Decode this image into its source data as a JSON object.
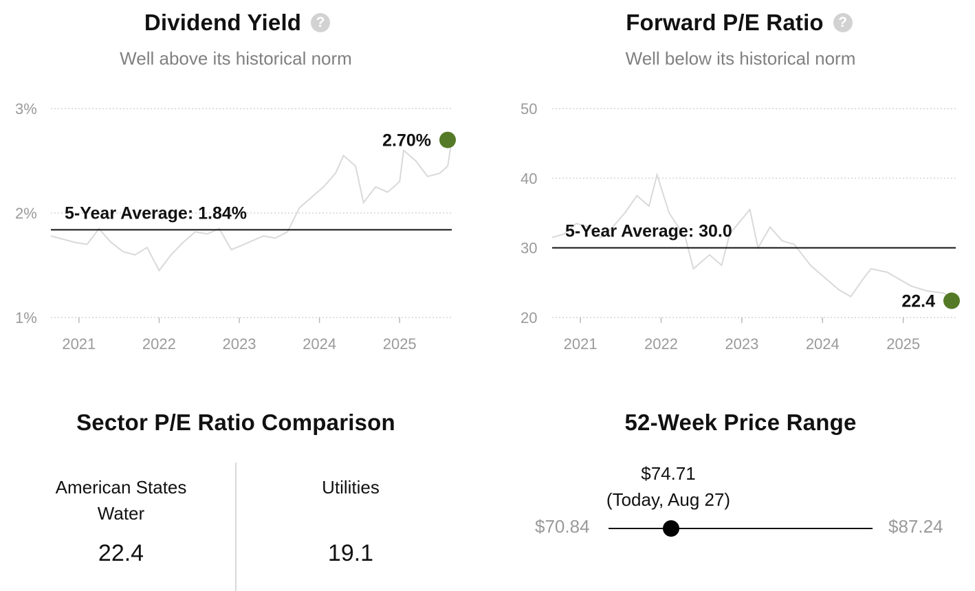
{
  "colors": {
    "current_dot": "#557a27",
    "history_line": "#d9d9d9",
    "average_line": "#111111",
    "grid": "#d4d4d4"
  },
  "dividend_yield": {
    "title": "Dividend Yield",
    "subtitle": "Well above its historical norm",
    "help_icon": "question-circle-icon"
  },
  "forward_pe": {
    "title": "Forward P/E Ratio",
    "subtitle": "Well below its historical norm",
    "help_icon": "question-circle-icon"
  },
  "chart_data": [
    {
      "type": "line",
      "id": "dividend-yield",
      "title": "Dividend Yield",
      "x_ticks": [
        "2021",
        "2022",
        "2023",
        "2024",
        "2025"
      ],
      "y_ticks": [
        "1%",
        "2%",
        "3%"
      ],
      "ylim": [
        1,
        3
      ],
      "xlim": [
        2020.65,
        2025.65
      ],
      "grid": true,
      "average": {
        "label": "5-Year Average: 1.84%",
        "value": 1.84
      },
      "current": {
        "label": "2.70%",
        "value": 2.7,
        "x": 2025.65
      },
      "series": [
        {
          "x": [
            2020.65,
            2020.8,
            2020.95,
            2021.1,
            2021.25,
            2021.4,
            2021.55,
            2021.7,
            2021.85,
            2022.0,
            2022.15,
            2022.3,
            2022.45,
            2022.6,
            2022.75,
            2022.9,
            2023.0,
            2023.15,
            2023.3,
            2023.45,
            2023.6,
            2023.75,
            2023.9,
            2024.05,
            2024.2,
            2024.3,
            2024.45,
            2024.55,
            2024.7,
            2024.85,
            2025.0,
            2025.05,
            2025.2,
            2025.35,
            2025.5,
            2025.6,
            2025.65
          ],
          "y": [
            1.78,
            1.75,
            1.72,
            1.7,
            1.85,
            1.72,
            1.63,
            1.6,
            1.67,
            1.45,
            1.6,
            1.72,
            1.82,
            1.8,
            1.85,
            1.65,
            1.68,
            1.73,
            1.78,
            1.76,
            1.82,
            2.05,
            2.15,
            2.25,
            2.38,
            2.55,
            2.45,
            2.1,
            2.25,
            2.2,
            2.3,
            2.6,
            2.5,
            2.35,
            2.38,
            2.45,
            2.7
          ]
        }
      ]
    },
    {
      "type": "line",
      "id": "forward-pe",
      "title": "Forward P/E Ratio",
      "x_ticks": [
        "2021",
        "2022",
        "2023",
        "2024",
        "2025"
      ],
      "y_ticks": [
        "20",
        "30",
        "40",
        "50"
      ],
      "ylim": [
        20,
        50
      ],
      "xlim": [
        2020.65,
        2025.65
      ],
      "grid": true,
      "average": {
        "label": "5-Year Average: 30.0",
        "value": 30.0
      },
      "current": {
        "label": "22.4",
        "value": 22.4,
        "x": 2025.65
      },
      "series": [
        {
          "x": [
            2020.65,
            2020.8,
            2020.95,
            2021.1,
            2021.25,
            2021.4,
            2021.55,
            2021.7,
            2021.85,
            2021.95,
            2022.1,
            2022.3,
            2022.4,
            2022.6,
            2022.75,
            2022.85,
            2023.1,
            2023.2,
            2023.35,
            2023.5,
            2023.65,
            2023.85,
            2024.0,
            2024.2,
            2024.35,
            2024.5,
            2024.6,
            2024.8,
            2024.95,
            2025.1,
            2025.3,
            2025.5,
            2025.65
          ],
          "y": [
            31.5,
            32.0,
            33.5,
            33.0,
            31.5,
            33.0,
            35.0,
            37.5,
            36.0,
            40.5,
            35.0,
            31.5,
            27.0,
            29.0,
            27.5,
            32.0,
            35.5,
            30.0,
            33.0,
            31.0,
            30.5,
            27.5,
            26.0,
            24.0,
            23.0,
            25.5,
            27.0,
            26.5,
            25.5,
            24.5,
            23.8,
            23.5,
            22.4
          ]
        }
      ]
    }
  ],
  "sector_comparison": {
    "title": "Sector P/E Ratio Comparison",
    "company": {
      "name": "American States Water",
      "value": "22.4"
    },
    "sector": {
      "name": "Utilities",
      "value": "19.1"
    }
  },
  "price_range": {
    "title": "52-Week Price Range",
    "low": "$70.84",
    "high": "$87.24",
    "current_price": "$74.71",
    "current_note": "(Today, Aug 27)",
    "low_value": 70.84,
    "high_value": 87.24,
    "current_value": 74.71
  }
}
